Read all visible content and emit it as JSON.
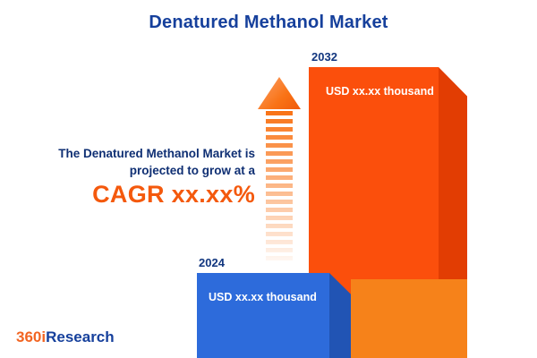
{
  "title": "Denatured Methanol Market",
  "tagline": {
    "line1": "The Denatured Methanol Market is",
    "line2": "projected to grow at a",
    "cagr": "CAGR xx.xx%"
  },
  "chart_data": {
    "type": "bar",
    "title": "Denatured Methanol Market",
    "categories": [
      "2024",
      "2032"
    ],
    "value_labels": [
      "USD xx.xx thousand",
      "USD xx.xx thousand"
    ],
    "unit": "USD thousand",
    "annotations": [
      "The Denatured Methanol Market is projected to grow at a CAGR xx.xx%"
    ],
    "legend": false,
    "grid": false,
    "colors": {
      "bar_2024": "#2D6BDB",
      "bar_2032": "#FB4F0C"
    }
  },
  "logo": {
    "part1": "360i",
    "part2": "Research"
  },
  "colors": {
    "accent_orange": "#F4590D",
    "navy": "#16409C",
    "blue_bar_front": "#2D6BDB",
    "blue_bar_side": "#2154B4",
    "orange_bar_front": "#FB4F0C",
    "orange_bar_side": "#E23D03",
    "orange_bar_light": "#F6821A"
  }
}
